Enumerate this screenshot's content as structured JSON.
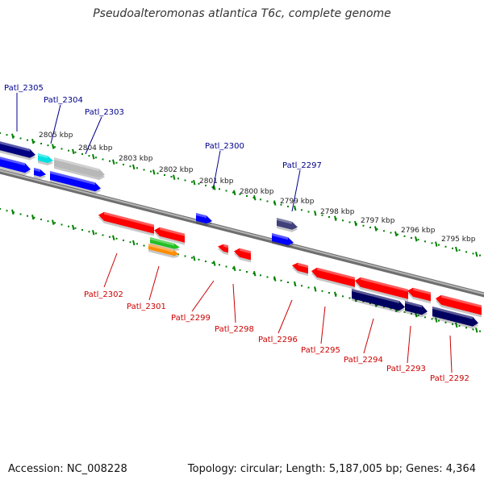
{
  "title": "Pseudoalteromonas atlantica T6c, complete genome",
  "footer": {
    "accession": "Accession: NC_008228",
    "topology": "Topology: circular; Length: 5,187,005 bp; Genes: 4,364"
  },
  "colors": {
    "forward_label": "#00008b",
    "reverse_label": "#cc0000",
    "tick": "#008000",
    "backbone": "#888888"
  },
  "kbp_labels": [
    "2805 kbp",
    "2804 kbp",
    "2803 kbp",
    "2802 kbp",
    "2801 kbp",
    "2800 kbp",
    "2799 kbp",
    "2798 kbp",
    "2797 kbp",
    "2796 kbp",
    "2795 kbp"
  ],
  "forward_genes": [
    "Patl_2305",
    "Patl_2304",
    "Patl_2303",
    "Patl_2300",
    "Patl_2297"
  ],
  "reverse_genes": [
    "Patl_2302",
    "Patl_2301",
    "Patl_2299",
    "Patl_2298",
    "Patl_2296",
    "Patl_2295",
    "Patl_2294",
    "Patl_2293",
    "Patl_2292"
  ]
}
